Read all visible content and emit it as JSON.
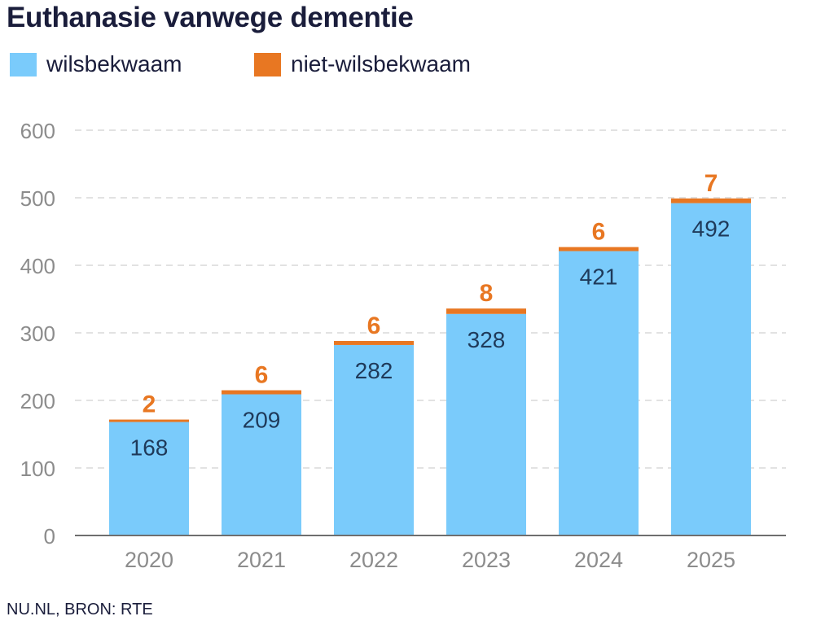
{
  "chart_data": {
    "type": "bar",
    "stacked": true,
    "title": "Euthanasie vanwege dementie",
    "categories": [
      "2020",
      "2021",
      "2022",
      "2023",
      "2024",
      "2025"
    ],
    "series": [
      {
        "name": "wilsbekwaam",
        "color": "#7acbfb",
        "label_color": "#1f3a5a",
        "values": [
          168,
          209,
          282,
          328,
          421,
          492
        ]
      },
      {
        "name": "niet-wilsbekwaam",
        "color": "#e87722",
        "label_color": "#e87722",
        "values": [
          2,
          6,
          6,
          8,
          6,
          7
        ]
      }
    ],
    "ylim": [
      0,
      600
    ],
    "yticks": [
      "0",
      "100",
      "200",
      "300",
      "400",
      "500",
      "600"
    ],
    "xlabel": "",
    "ylabel": "",
    "grid": true,
    "legend_position": "top-left"
  },
  "source": "NU.NL, BRON: RTE"
}
